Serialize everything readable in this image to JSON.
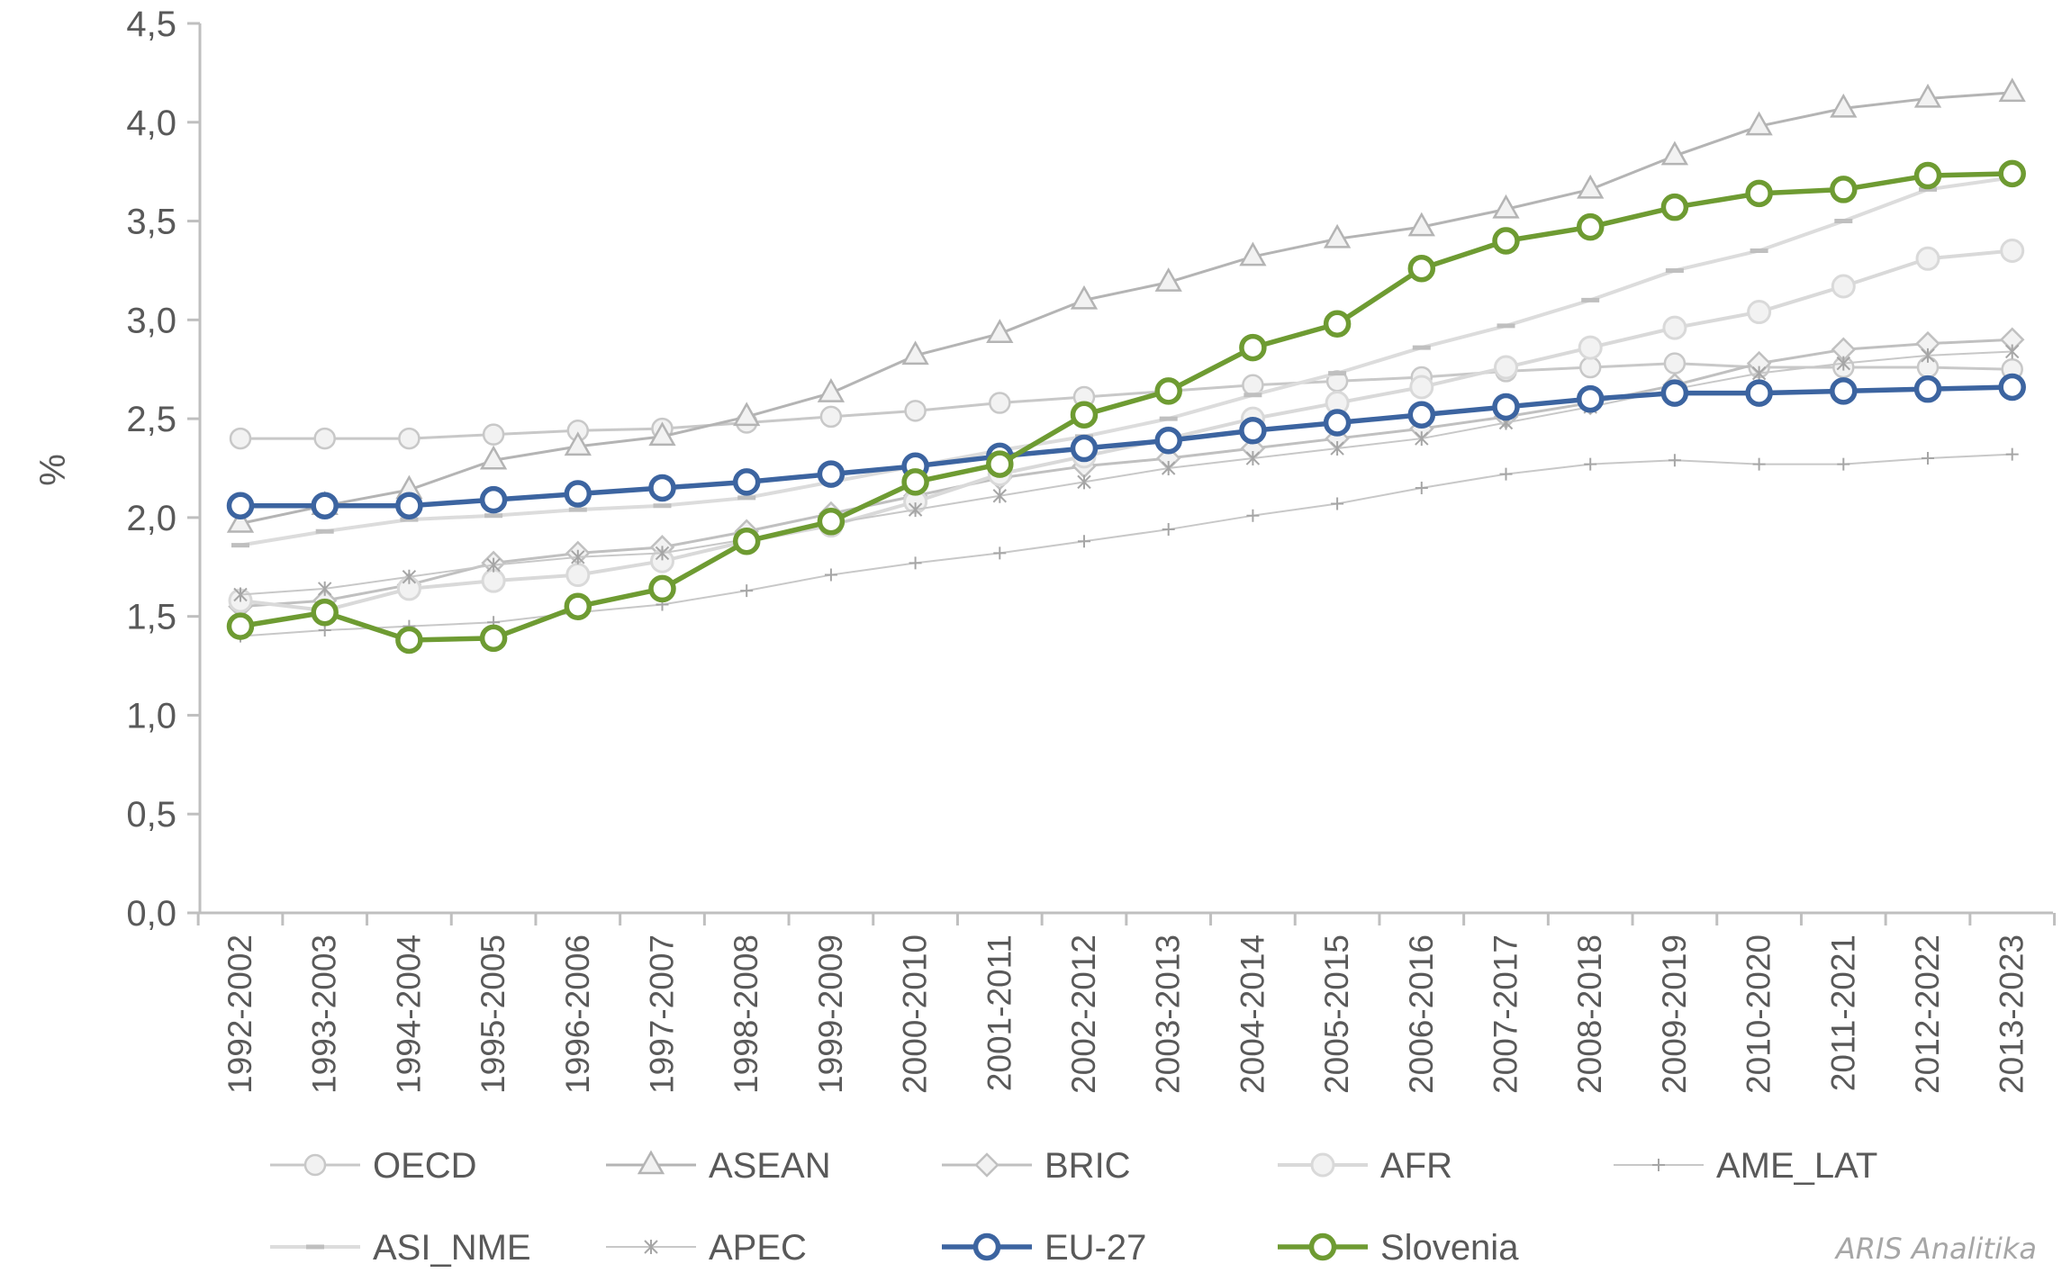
{
  "watermark": "ARIS Analitika",
  "chart_data": {
    "type": "line",
    "title": "",
    "xlabel": "",
    "ylabel": "%",
    "ylim": [
      0,
      4.5
    ],
    "yticks": [
      "0,0",
      "0,5",
      "1,0",
      "1,5",
      "2,0",
      "2,5",
      "3,0",
      "3,5",
      "4,0",
      "4,5"
    ],
    "grid": false,
    "legend_position": "bottom",
    "categories": [
      "1992-2002",
      "1993-2003",
      "1994-2004",
      "1995-2005",
      "1996-2006",
      "1997-2007",
      "1998-2008",
      "1999-2009",
      "2000-2010",
      "2001-2011",
      "2002-2012",
      "2003-2013",
      "2004-2014",
      "2005-2015",
      "2006-2016",
      "2007-2017",
      "2008-2018",
      "2009-2019",
      "2010-2020",
      "2011-2021",
      "2012-2022",
      "2013-2023"
    ],
    "series": [
      {
        "name": "OECD",
        "marker": "circle",
        "color": "#c8c8c8",
        "values": [
          2.4,
          2.4,
          2.4,
          2.42,
          2.44,
          2.45,
          2.48,
          2.51,
          2.54,
          2.58,
          2.61,
          2.64,
          2.67,
          2.69,
          2.71,
          2.74,
          2.76,
          2.78,
          2.76,
          2.76,
          2.76,
          2.75
        ]
      },
      {
        "name": "ASEAN",
        "marker": "triangle",
        "color": "#b4b4b4",
        "values": [
          1.97,
          2.06,
          2.14,
          2.29,
          2.36,
          2.41,
          2.51,
          2.63,
          2.82,
          2.93,
          3.1,
          3.19,
          3.32,
          3.41,
          3.47,
          3.56,
          3.66,
          3.83,
          3.98,
          4.07,
          4.12,
          4.15
        ]
      },
      {
        "name": "BRIC",
        "marker": "diamond",
        "color": "#c0c0c0",
        "values": [
          1.55,
          1.58,
          1.66,
          1.77,
          1.82,
          1.85,
          1.93,
          2.02,
          2.11,
          2.2,
          2.26,
          2.3,
          2.35,
          2.4,
          2.45,
          2.51,
          2.58,
          2.67,
          2.78,
          2.85,
          2.88,
          2.9
        ]
      },
      {
        "name": "AFR",
        "marker": "circle-lg",
        "color": "#d9d9d9",
        "values": [
          1.58,
          1.53,
          1.64,
          1.68,
          1.71,
          1.78,
          1.88,
          1.96,
          2.08,
          2.22,
          2.31,
          2.4,
          2.5,
          2.58,
          2.66,
          2.76,
          2.86,
          2.96,
          3.04,
          3.17,
          3.31,
          3.35
        ]
      },
      {
        "name": "AME_LAT",
        "marker": "plus",
        "color": "#c8c8c8",
        "values": [
          1.4,
          1.43,
          1.45,
          1.47,
          1.52,
          1.56,
          1.63,
          1.71,
          1.77,
          1.82,
          1.88,
          1.94,
          2.01,
          2.07,
          2.15,
          2.22,
          2.27,
          2.29,
          2.27,
          2.27,
          2.3,
          2.32
        ]
      },
      {
        "name": "ASI_NME",
        "marker": "dash",
        "color": "#dcdcdc",
        "values": [
          1.86,
          1.93,
          1.99,
          2.01,
          2.04,
          2.06,
          2.1,
          2.18,
          2.26,
          2.34,
          2.41,
          2.5,
          2.62,
          2.73,
          2.86,
          2.97,
          3.1,
          3.25,
          3.35,
          3.5,
          3.66,
          3.72
        ]
      },
      {
        "name": "APEC",
        "marker": "star",
        "color": "#c8c8c8",
        "values": [
          1.61,
          1.64,
          1.7,
          1.76,
          1.8,
          1.82,
          1.89,
          1.97,
          2.04,
          2.11,
          2.18,
          2.25,
          2.3,
          2.35,
          2.4,
          2.48,
          2.56,
          2.65,
          2.73,
          2.78,
          2.82,
          2.84
        ]
      },
      {
        "name": "EU-27",
        "marker": "circle-bold",
        "color": "#3c64a0",
        "values": [
          2.06,
          2.06,
          2.06,
          2.09,
          2.12,
          2.15,
          2.18,
          2.22,
          2.26,
          2.31,
          2.35,
          2.39,
          2.44,
          2.48,
          2.52,
          2.56,
          2.6,
          2.63,
          2.63,
          2.64,
          2.65,
          2.66
        ]
      },
      {
        "name": "Slovenia",
        "marker": "circle-bold",
        "color": "#6e9b32",
        "values": [
          1.45,
          1.52,
          1.38,
          1.39,
          1.55,
          1.64,
          1.88,
          1.98,
          2.18,
          2.27,
          2.52,
          2.64,
          2.86,
          2.98,
          3.26,
          3.4,
          3.47,
          3.57,
          3.64,
          3.66,
          3.73,
          3.74
        ]
      }
    ]
  }
}
